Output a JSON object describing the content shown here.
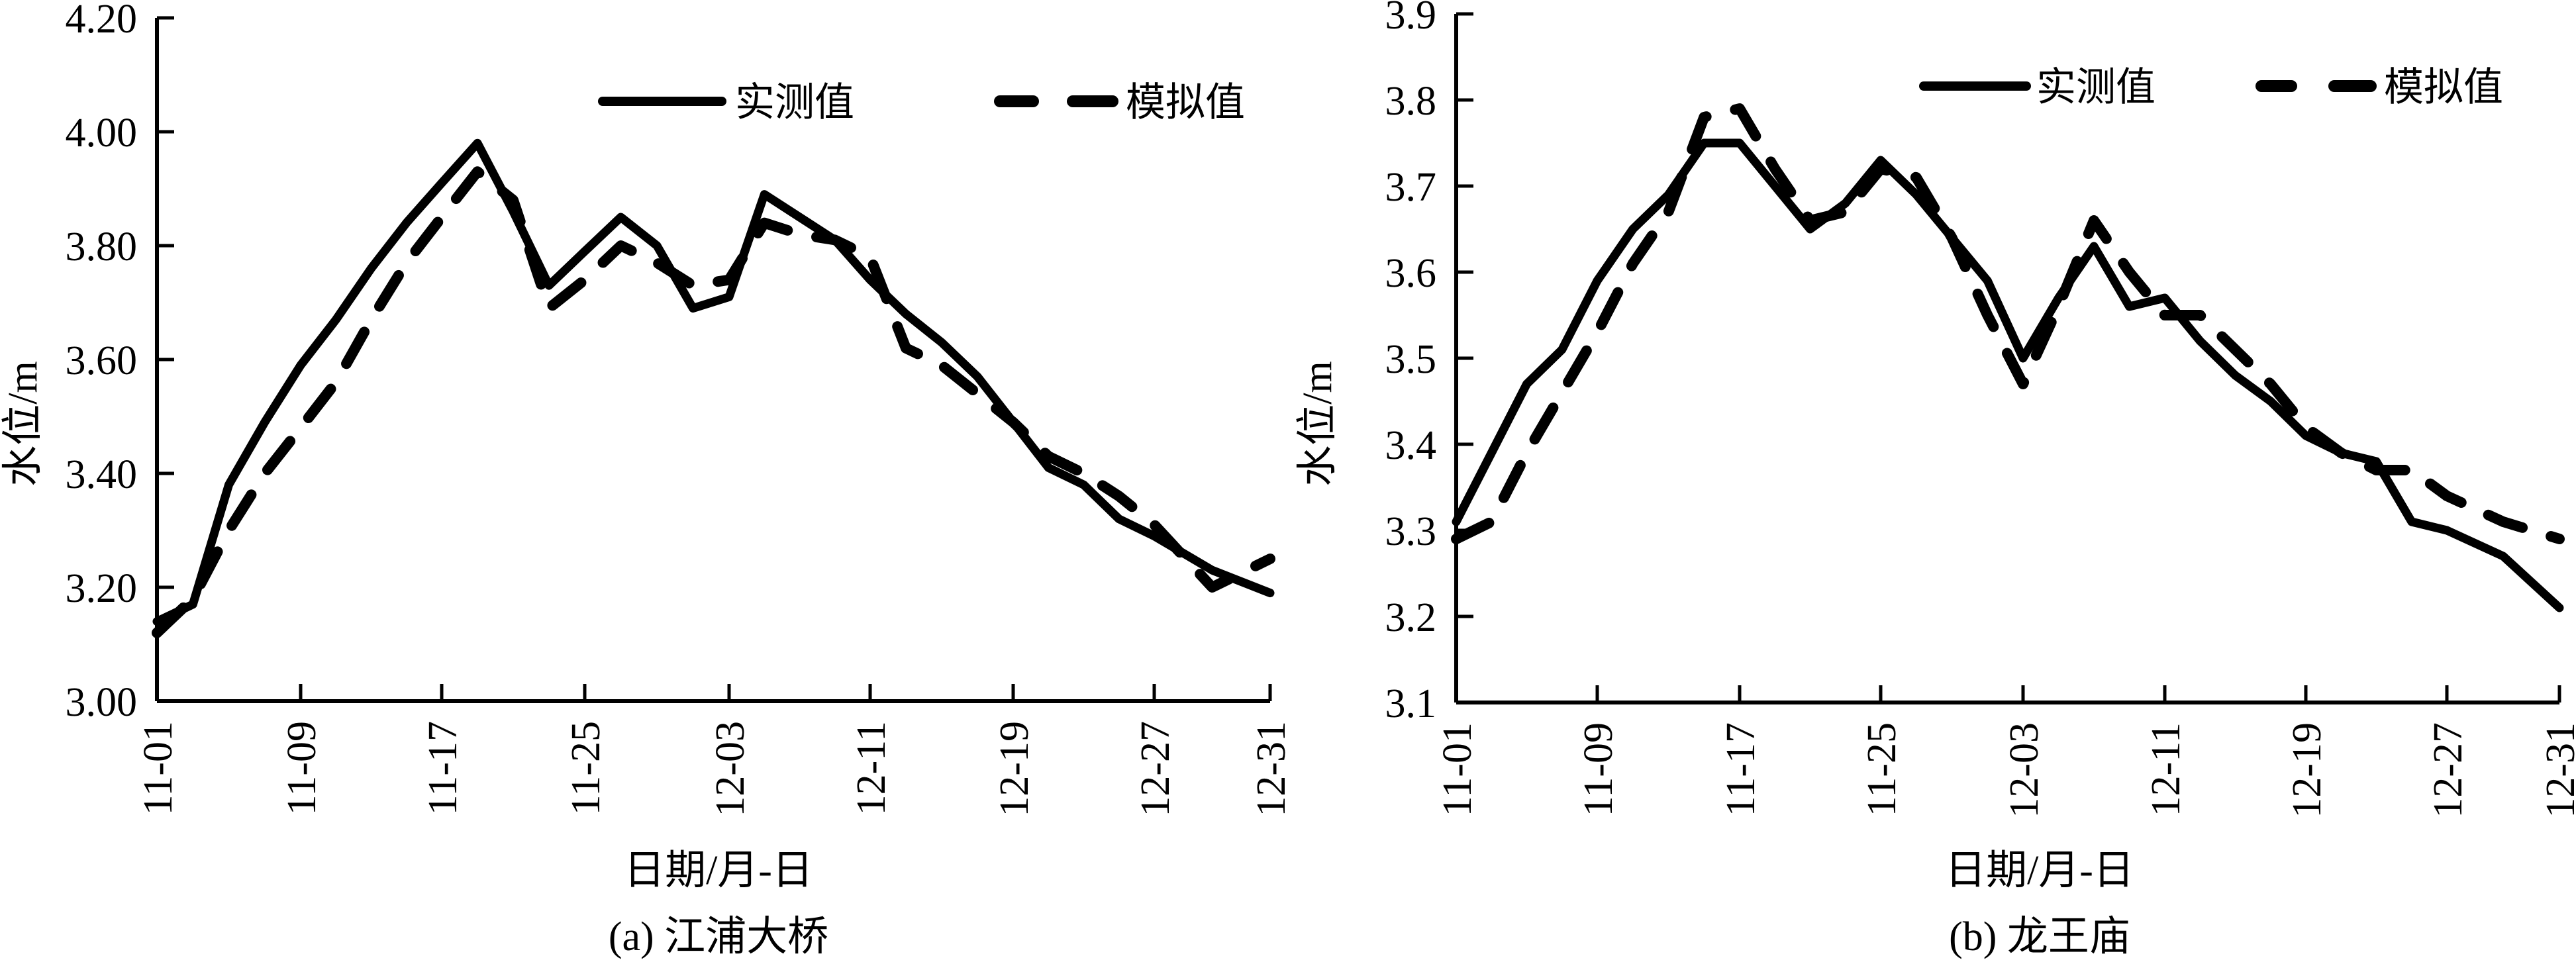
{
  "chart_data": [
    {
      "type": "line",
      "title": "(a) 江浦大桥",
      "xlabel": "日期/月-日",
      "ylabel": "水位/m",
      "ylim": [
        3.0,
        4.2
      ],
      "yticks": [
        "3.00",
        "3.20",
        "3.40",
        "3.60",
        "3.80",
        "4.00",
        "4.20"
      ],
      "xticks": [
        "11-01",
        "11-09",
        "11-17",
        "11-25",
        "12-03",
        "12-11",
        "12-19",
        "12-27",
        "12-31"
      ],
      "legend": [
        "实测值",
        "模拟值"
      ],
      "legend_position": "top-right",
      "grid": false,
      "x_day_index": [
        0,
        2,
        4,
        6,
        8,
        10,
        12,
        14,
        16,
        18,
        20,
        22,
        24,
        26,
        28,
        30,
        32,
        34,
        36,
        38,
        40,
        42,
        44,
        46,
        48,
        50,
        52,
        54,
        56,
        58,
        60
      ],
      "series": [
        {
          "name": "实测值",
          "style": "solid",
          "values": [
            3.14,
            3.17,
            3.38,
            3.49,
            3.59,
            3.67,
            3.76,
            3.84,
            3.91,
            3.98,
            3.86,
            3.73,
            3.79,
            3.85,
            3.8,
            3.69,
            3.71,
            3.89,
            3.85,
            3.81,
            3.74,
            3.68,
            3.63,
            3.57,
            3.49,
            3.41,
            3.38,
            3.32,
            3.29,
            3.23,
            3.19
          ]
        },
        {
          "name": "模拟值",
          "style": "dashed",
          "values": [
            3.12,
            3.18,
            3.3,
            3.4,
            3.48,
            3.56,
            3.67,
            3.77,
            3.85,
            3.93,
            3.88,
            3.69,
            3.74,
            3.8,
            3.77,
            3.73,
            3.74,
            3.84,
            3.82,
            3.81,
            3.78,
            3.62,
            3.59,
            3.54,
            3.49,
            3.43,
            3.4,
            3.36,
            3.31,
            3.2,
            3.25
          ]
        }
      ]
    },
    {
      "type": "line",
      "title": "(b) 龙王庙",
      "xlabel": "日期/月-日",
      "ylabel": "水位/m",
      "ylim": [
        3.1,
        3.9
      ],
      "yticks": [
        "3.1",
        "3.2",
        "3.3",
        "3.4",
        "3.5",
        "3.6",
        "3.7",
        "3.8",
        "3.9"
      ],
      "xticks": [
        "11-01",
        "11-09",
        "11-17",
        "11-25",
        "12-03",
        "12-11",
        "12-19",
        "12-27",
        "12-31"
      ],
      "legend": [
        "实测值",
        "模拟值"
      ],
      "legend_position": "top-right",
      "grid": false,
      "x_day_index": [
        0,
        2,
        4,
        6,
        8,
        10,
        12,
        14,
        16,
        18,
        20,
        22,
        24,
        26,
        28,
        30,
        32,
        34,
        36,
        38,
        40,
        42,
        44,
        46,
        48,
        50,
        52,
        54,
        56,
        58,
        60
      ],
      "series": [
        {
          "name": "实测值",
          "style": "solid",
          "values": [
            3.31,
            3.39,
            3.47,
            3.51,
            3.59,
            3.65,
            3.69,
            3.75,
            3.75,
            3.7,
            3.65,
            3.68,
            3.73,
            3.69,
            3.64,
            3.59,
            3.5,
            3.57,
            3.63,
            3.56,
            3.57,
            3.52,
            3.48,
            3.45,
            3.41,
            3.39,
            3.38,
            3.31,
            3.3,
            3.27,
            3.21
          ]
        },
        {
          "name": "模拟值",
          "style": "dashed",
          "values": [
            3.29,
            3.31,
            3.39,
            3.46,
            3.53,
            3.61,
            3.67,
            3.78,
            3.79,
            3.72,
            3.66,
            3.67,
            3.72,
            3.71,
            3.64,
            3.55,
            3.47,
            3.56,
            3.66,
            3.6,
            3.55,
            3.55,
            3.51,
            3.47,
            3.42,
            3.39,
            3.37,
            3.37,
            3.34,
            3.31,
            3.29
          ]
        }
      ]
    }
  ],
  "charts": {
    "a": {
      "caption": "(a) 江浦大桥",
      "xlabel": "日期/月-日",
      "ylabel": "水位/m",
      "legend_measured": "实测值",
      "legend_simulated": "模拟值"
    },
    "b": {
      "caption": "(b) 龙王庙",
      "xlabel": "日期/月-日",
      "ylabel": "水位/m",
      "legend_measured": "实测值",
      "legend_simulated": "模拟值"
    }
  },
  "colors": {
    "line": "#000000",
    "axis": "#000000",
    "background": "#ffffff"
  }
}
